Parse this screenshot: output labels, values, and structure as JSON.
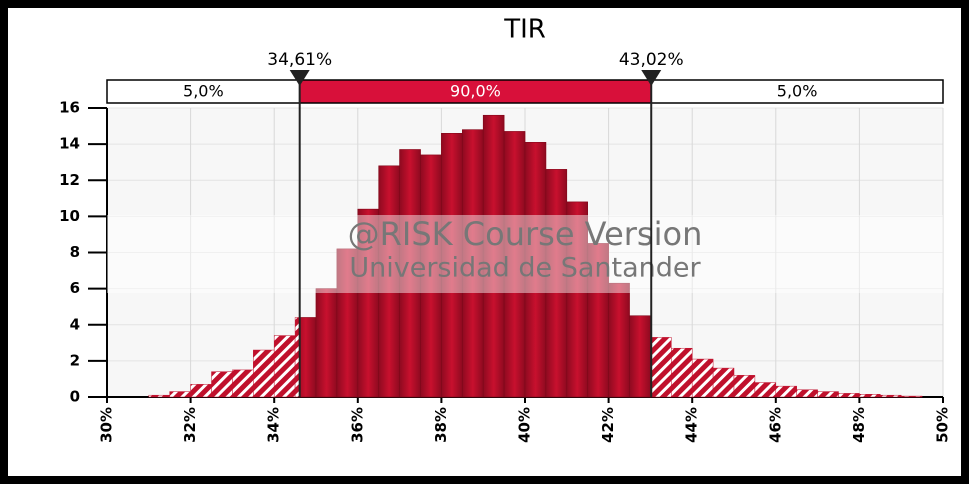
{
  "chart_data": {
    "type": "histogram",
    "title": "TIR",
    "bins": [
      31.0,
      31.5,
      32.0,
      32.5,
      33.0,
      33.5,
      34.0,
      34.5,
      35.0,
      35.5,
      36.0,
      36.5,
      37.0,
      37.5,
      38.0,
      38.5,
      39.0,
      39.5,
      40.0,
      40.5,
      41.0,
      41.5,
      42.0,
      42.5,
      43.0,
      43.5,
      44.0,
      44.5,
      45.0,
      45.5,
      46.0,
      46.5,
      47.0,
      47.5,
      48.0,
      48.5,
      49.0,
      49.5
    ],
    "values": [
      0.1,
      0.3,
      0.7,
      1.4,
      1.5,
      2.6,
      3.4,
      4.4,
      6.0,
      8.2,
      10.4,
      12.8,
      13.7,
      13.4,
      14.6,
      14.8,
      15.6,
      14.7,
      14.1,
      12.6,
      10.8,
      8.5,
      6.3,
      4.5,
      3.3,
      2.7,
      2.1,
      1.6,
      1.2,
      0.8,
      0.6,
      0.4,
      0.3,
      0.2,
      0.15,
      0.1,
      0.05
    ],
    "color": "#c0102c",
    "xlim": [
      30,
      50
    ],
    "ylim": [
      0,
      16
    ],
    "xticks": [
      {
        "value": 30,
        "label": "30%"
      },
      {
        "value": 32,
        "label": "32%"
      },
      {
        "value": 34,
        "label": "34%"
      },
      {
        "value": 36,
        "label": "36%"
      },
      {
        "value": 38,
        "label": "38%"
      },
      {
        "value": 40,
        "label": "40%"
      },
      {
        "value": 42,
        "label": "42%"
      },
      {
        "value": 44,
        "label": "44%"
      },
      {
        "value": 46,
        "label": "46%"
      },
      {
        "value": 48,
        "label": "48%"
      },
      {
        "value": 50,
        "label": "50%"
      }
    ],
    "yticks": [
      0,
      2,
      4,
      6,
      8,
      10,
      12,
      14,
      16
    ],
    "grid": true,
    "delimiters": [
      {
        "value": 34.61,
        "label": "34,61%"
      },
      {
        "value": 43.02,
        "label": "43,02%"
      }
    ],
    "regions": {
      "values": [
        5,
        90,
        5
      ],
      "value_labels": [
        "5,0%",
        "90,0%",
        "5,0%"
      ]
    },
    "annotations": [
      "@RISK Course Version",
      "Universidad de Santander"
    ]
  }
}
